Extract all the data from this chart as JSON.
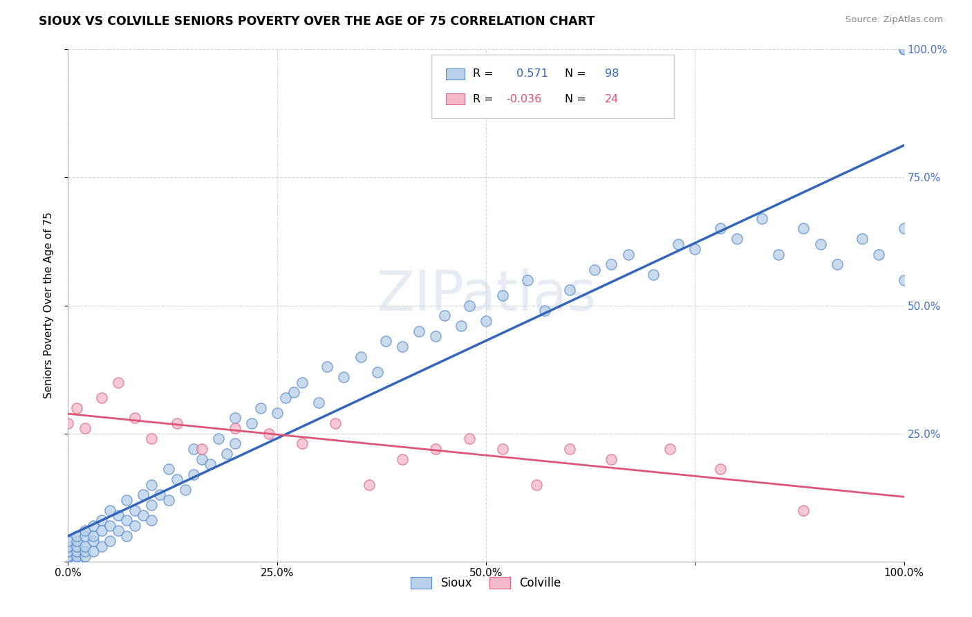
{
  "title": "SIOUX VS COLVILLE SENIORS POVERTY OVER THE AGE OF 75 CORRELATION CHART",
  "source": "Source: ZipAtlas.com",
  "ylabel": "Seniors Poverty Over the Age of 75",
  "sioux_r": 0.571,
  "sioux_n": 98,
  "colville_r": -0.036,
  "colville_n": 24,
  "sioux_color": "#b8d0e8",
  "sioux_edge_color": "#5588cc",
  "sioux_line_color": "#3366bb",
  "colville_color": "#f5b8c8",
  "colville_edge_color": "#dd6688",
  "colville_line_color": "#dd5577",
  "watermark": "ZIPatlas",
  "sioux_x": [
    0.0,
    0.0,
    0.0,
    0.0,
    0.0,
    0.0,
    0.0,
    0.0,
    0.01,
    0.01,
    0.01,
    0.01,
    0.01,
    0.01,
    0.01,
    0.02,
    0.02,
    0.02,
    0.02,
    0.02,
    0.03,
    0.03,
    0.03,
    0.03,
    0.04,
    0.04,
    0.04,
    0.05,
    0.05,
    0.05,
    0.06,
    0.06,
    0.07,
    0.07,
    0.07,
    0.08,
    0.08,
    0.09,
    0.09,
    0.1,
    0.1,
    0.1,
    0.11,
    0.12,
    0.12,
    0.13,
    0.14,
    0.15,
    0.15,
    0.16,
    0.17,
    0.18,
    0.19,
    0.2,
    0.2,
    0.22,
    0.23,
    0.25,
    0.26,
    0.27,
    0.28,
    0.3,
    0.31,
    0.33,
    0.35,
    0.37,
    0.38,
    0.4,
    0.42,
    0.44,
    0.45,
    0.47,
    0.48,
    0.5,
    0.52,
    0.55,
    0.57,
    0.6,
    0.63,
    0.65,
    0.67,
    0.7,
    0.73,
    0.75,
    0.78,
    0.8,
    0.83,
    0.85,
    0.88,
    0.9,
    0.92,
    0.95,
    0.97,
    1.0,
    1.0,
    1.0,
    1.0,
    1.0
  ],
  "sioux_y": [
    0.0,
    0.0,
    0.0,
    0.01,
    0.01,
    0.02,
    0.03,
    0.04,
    0.0,
    0.0,
    0.01,
    0.02,
    0.03,
    0.04,
    0.05,
    0.01,
    0.02,
    0.03,
    0.05,
    0.06,
    0.02,
    0.04,
    0.05,
    0.07,
    0.03,
    0.06,
    0.08,
    0.04,
    0.07,
    0.1,
    0.06,
    0.09,
    0.05,
    0.08,
    0.12,
    0.07,
    0.1,
    0.09,
    0.13,
    0.08,
    0.11,
    0.15,
    0.13,
    0.12,
    0.18,
    0.16,
    0.14,
    0.17,
    0.22,
    0.2,
    0.19,
    0.24,
    0.21,
    0.23,
    0.28,
    0.27,
    0.3,
    0.29,
    0.32,
    0.33,
    0.35,
    0.31,
    0.38,
    0.36,
    0.4,
    0.37,
    0.43,
    0.42,
    0.45,
    0.44,
    0.48,
    0.46,
    0.5,
    0.47,
    0.52,
    0.55,
    0.49,
    0.53,
    0.57,
    0.58,
    0.6,
    0.56,
    0.62,
    0.61,
    0.65,
    0.63,
    0.67,
    0.6,
    0.65,
    0.62,
    0.58,
    0.63,
    0.6,
    1.0,
    1.0,
    1.0,
    0.65,
    0.55
  ],
  "colville_x": [
    0.0,
    0.01,
    0.02,
    0.04,
    0.06,
    0.08,
    0.1,
    0.13,
    0.16,
    0.2,
    0.24,
    0.28,
    0.32,
    0.36,
    0.4,
    0.44,
    0.48,
    0.52,
    0.56,
    0.6,
    0.65,
    0.72,
    0.78,
    0.88
  ],
  "colville_y": [
    0.27,
    0.3,
    0.26,
    0.32,
    0.35,
    0.28,
    0.24,
    0.27,
    0.22,
    0.26,
    0.25,
    0.23,
    0.27,
    0.15,
    0.2,
    0.22,
    0.24,
    0.22,
    0.15,
    0.22,
    0.2,
    0.22,
    0.18,
    0.1
  ],
  "xtick_vals": [
    0.0,
    0.25,
    0.5,
    0.75,
    1.0
  ],
  "xtick_labels": [
    "0.0%",
    "25.0%",
    "50.0%",
    "",
    "100.0%"
  ],
  "ytick_vals_right": [
    0.25,
    0.5,
    0.75,
    1.0
  ],
  "ytick_labels_right": [
    "25.0%",
    "50.0%",
    "75.0%",
    "100.0%"
  ],
  "background_color": "#ffffff",
  "grid_color": "#cccccc",
  "tick_label_color": "#4472c4",
  "sioux_label": "Sioux",
  "colville_label": "Colville"
}
